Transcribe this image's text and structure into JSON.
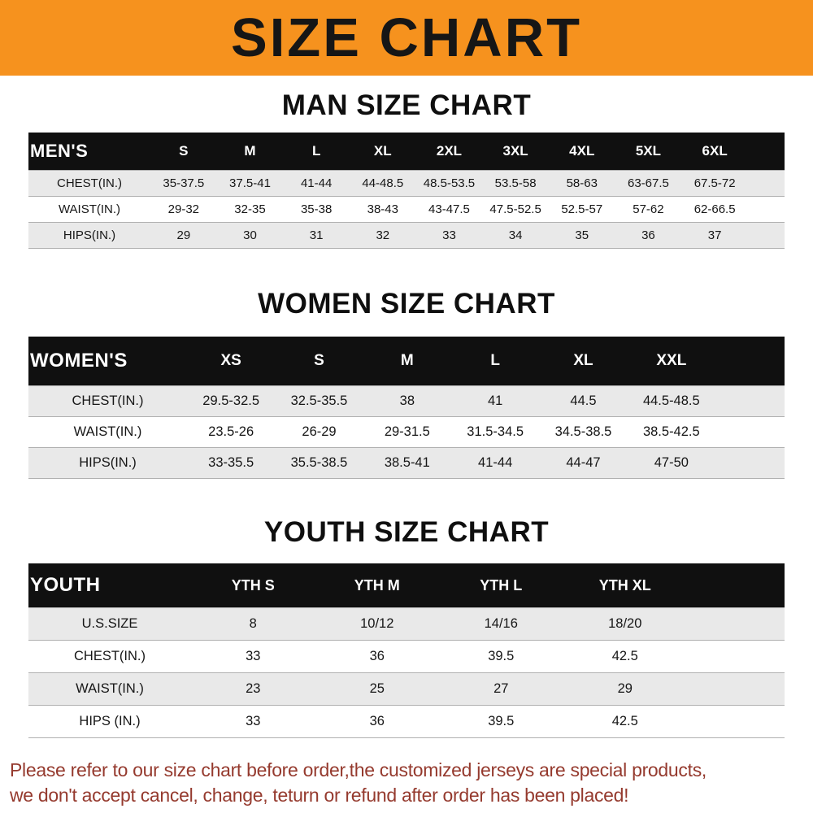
{
  "banner": {
    "title": "SIZE CHART",
    "bg": "#F6921E"
  },
  "sections": [
    {
      "id": "men",
      "heading": "MAN SIZE CHART",
      "table": {
        "label": "MEN'S",
        "columns": [
          "S",
          "M",
          "L",
          "XL",
          "2XL",
          "3XL",
          "4XL",
          "5XL",
          "6XL"
        ],
        "rows": [
          {
            "label": "CHEST(IN.)",
            "values": [
              "35-37.5",
              "37.5-41",
              "41-44",
              "44-48.5",
              "48.5-53.5",
              "53.5-58",
              "58-63",
              "63-67.5",
              "67.5-72"
            ]
          },
          {
            "label": "WAIST(IN.)",
            "values": [
              "29-32",
              "32-35",
              "35-38",
              "38-43",
              "43-47.5",
              "47.5-52.5",
              "52.5-57",
              "57-62",
              "62-66.5"
            ]
          },
          {
            "label": "HIPS(IN.)",
            "values": [
              "29",
              "30",
              "31",
              "32",
              "33",
              "34",
              "35",
              "36",
              "37"
            ]
          }
        ]
      }
    },
    {
      "id": "women",
      "heading": "WOMEN SIZE CHART",
      "table": {
        "label": "WOMEN'S",
        "columns": [
          "XS",
          "S",
          "M",
          "L",
          "XL",
          "XXL"
        ],
        "rows": [
          {
            "label": "CHEST(IN.)",
            "values": [
              "29.5-32.5",
              "32.5-35.5",
              "38",
              "41",
              "44.5",
              "44.5-48.5"
            ]
          },
          {
            "label": "WAIST(IN.)",
            "values": [
              "23.5-26",
              "26-29",
              "29-31.5",
              "31.5-34.5",
              "34.5-38.5",
              "38.5-42.5"
            ]
          },
          {
            "label": "HIPS(IN.)",
            "values": [
              "33-35.5",
              "35.5-38.5",
              "38.5-41",
              "41-44",
              "44-47",
              "47-50"
            ]
          }
        ]
      }
    },
    {
      "id": "youth",
      "heading": "YOUTH SIZE CHART",
      "table": {
        "label": "YOUTH",
        "columns": [
          "YTH S",
          "YTH M",
          "YTH L",
          "YTH XL"
        ],
        "rows": [
          {
            "label": "U.S.SIZE",
            "values": [
              "8",
              "10/12",
              "14/16",
              "18/20"
            ]
          },
          {
            "label": "CHEST(IN.)",
            "values": [
              "33",
              "36",
              "39.5",
              "42.5"
            ]
          },
          {
            "label": "WAIST(IN.)",
            "values": [
              "23",
              "25",
              "27",
              "29"
            ]
          },
          {
            "label": "HIPS (IN.)",
            "values": [
              "33",
              "36",
              "39.5",
              "42.5"
            ]
          }
        ]
      }
    }
  ],
  "footer": {
    "line1": "Please refer to our size chart before order,the customized jerseys are special products,",
    "line2": "we don't accept cancel, change, teturn or refund after order has been placed!",
    "color": "#953A2E"
  }
}
